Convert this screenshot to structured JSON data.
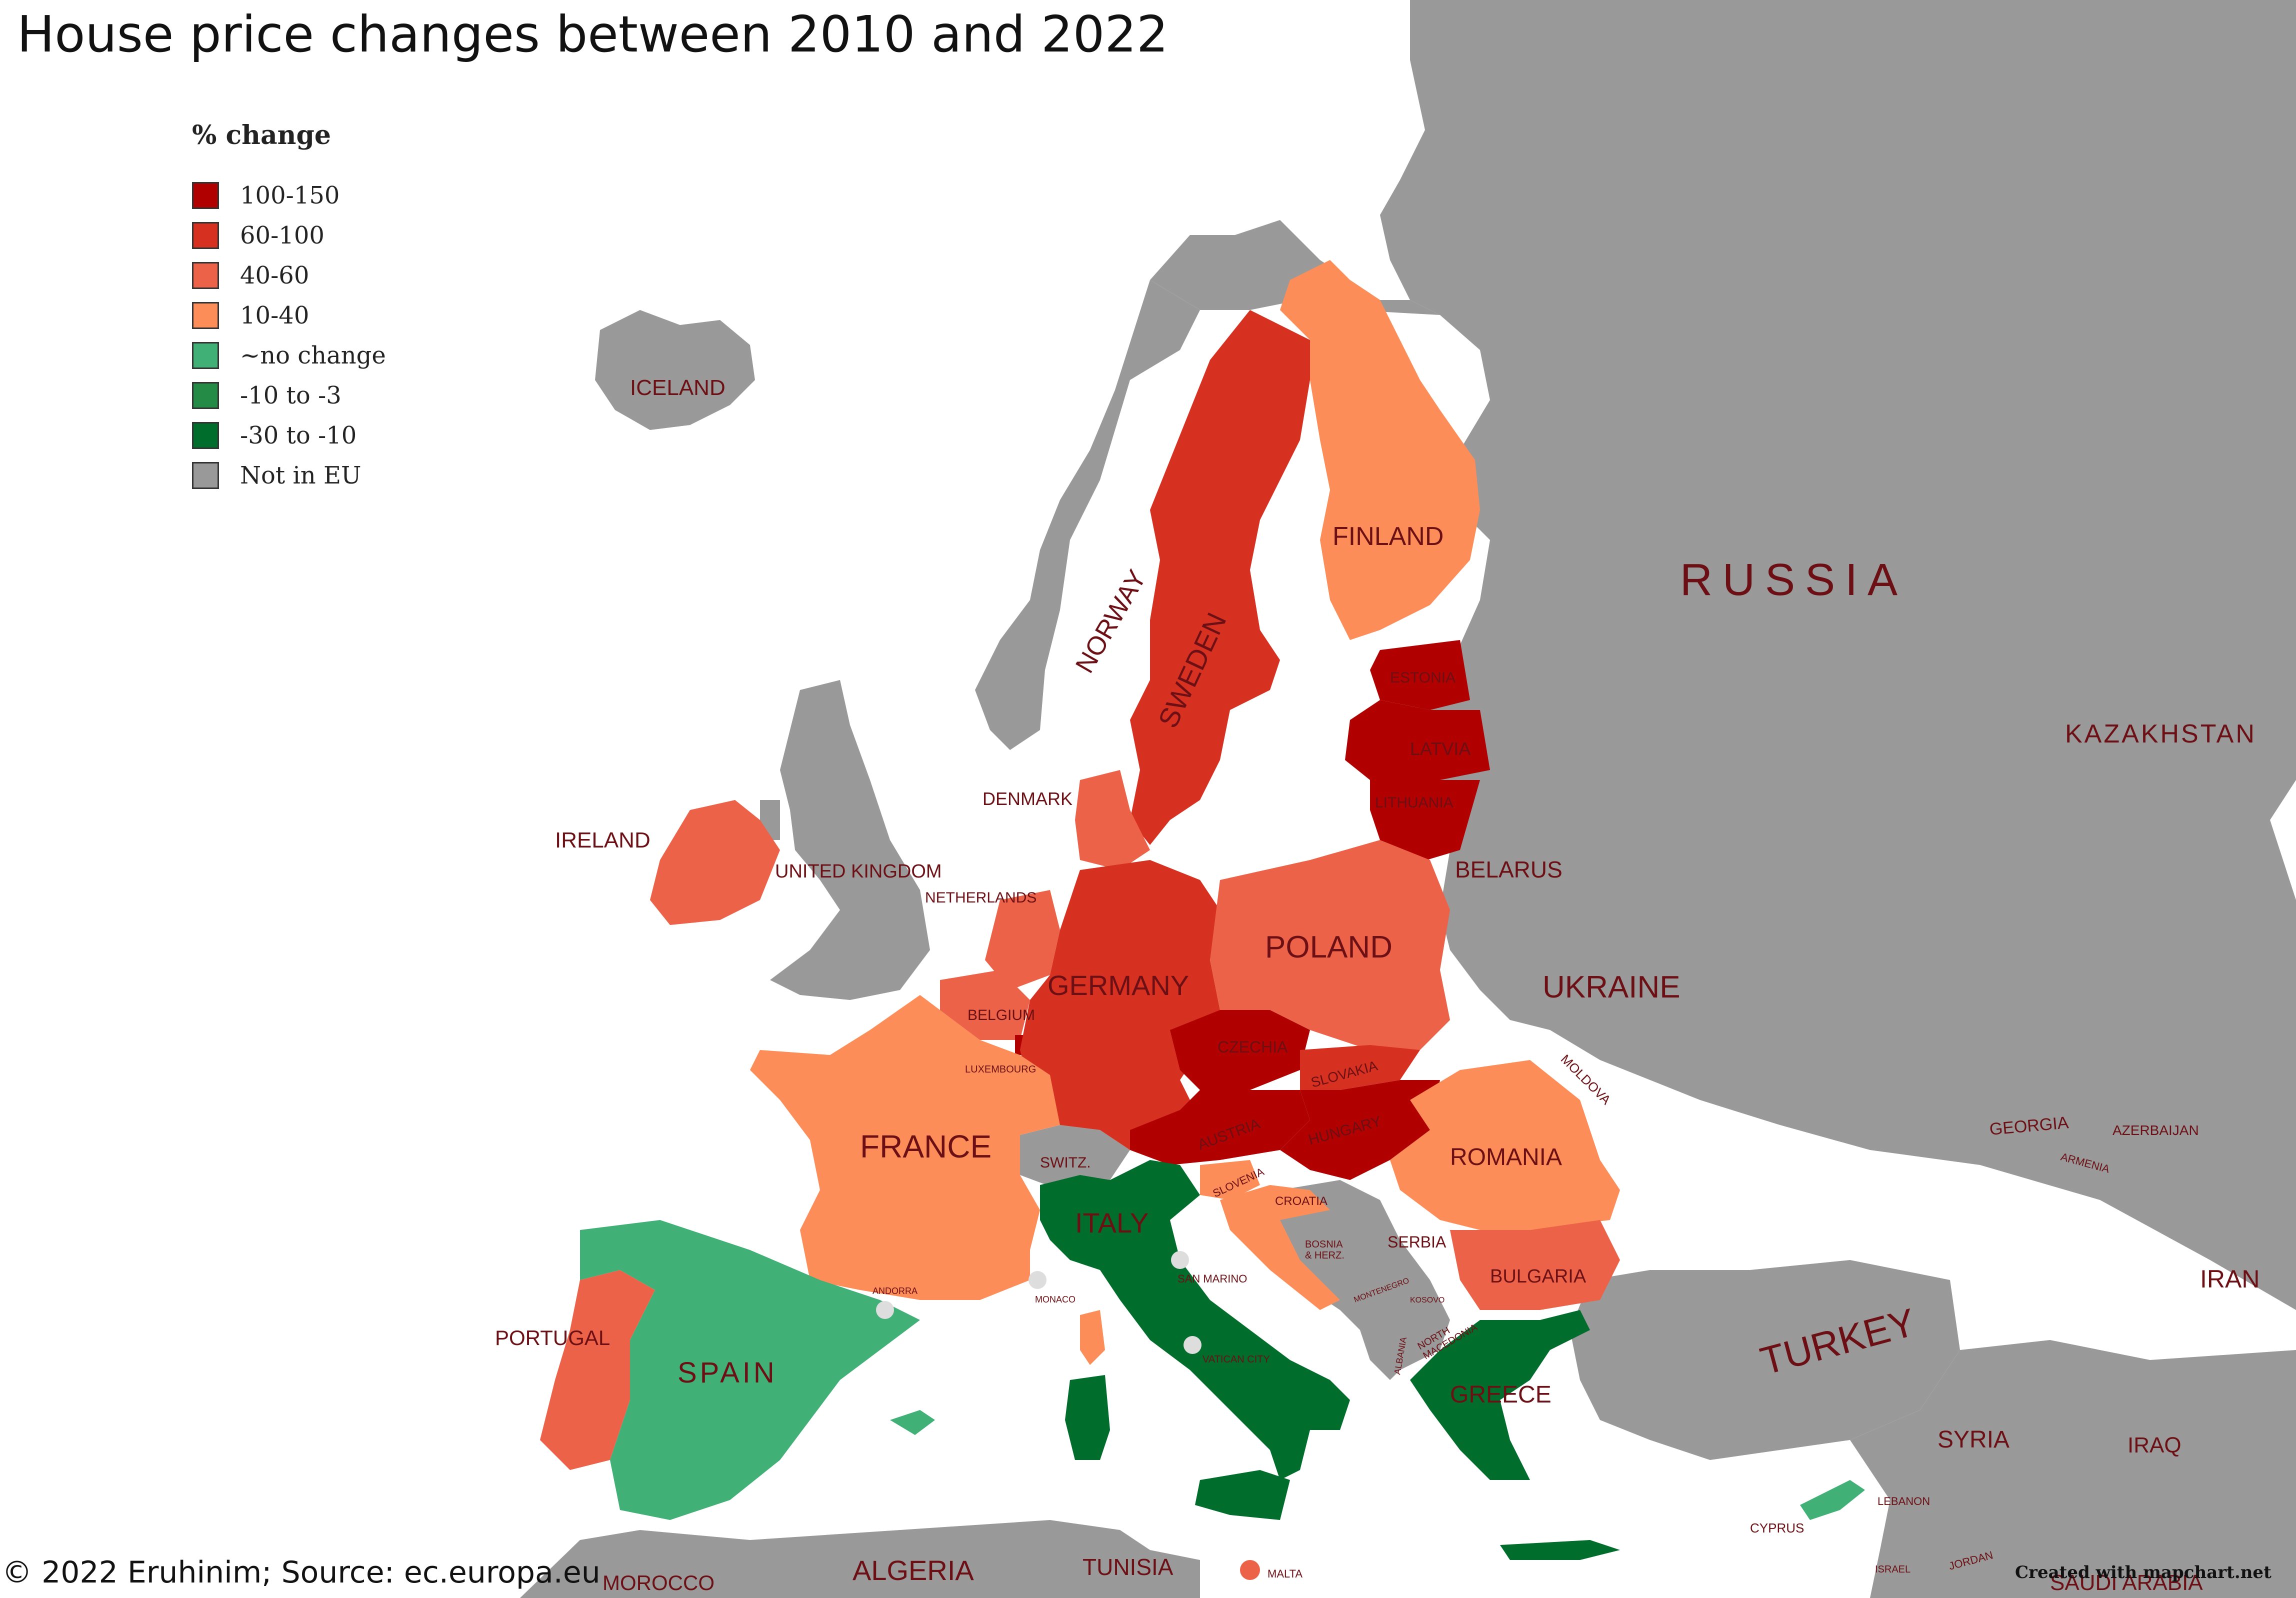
{
  "title": "House price changes between 2010 and 2022",
  "legend": {
    "title": "% change",
    "items": [
      {
        "label": "100-150",
        "color": "#b00000"
      },
      {
        "label": "60-100",
        "color": "#d63020"
      },
      {
        "label": "40-60",
        "color": "#ec6248"
      },
      {
        "label": "10-40",
        "color": "#fc8d58"
      },
      {
        "label": "~no change",
        "color": "#41b077"
      },
      {
        "label": "-10 to -3",
        "color": "#238b45"
      },
      {
        "label": "-30 to -10",
        "color": "#006d2c"
      },
      {
        "label": "Not in EU",
        "color": "#999999"
      }
    ]
  },
  "countries": {
    "iceland": "ICELAND",
    "ireland": "IRELAND",
    "uk": "UNITED KINGDOM",
    "norway": "NORWAY",
    "sweden": "SWEDEN",
    "finland": "FINLAND",
    "russia": "RUSSIA",
    "estonia": "ESTONIA",
    "latvia": "LATVIA",
    "lithuania": "LITHUANIA",
    "belarus": "BELARUS",
    "denmark": "DENMARK",
    "netherlands": "NETHERLANDS",
    "germany": "GERMANY",
    "poland": "POLAND",
    "belgium": "BELGIUM",
    "luxembourg": "LUXEMBOURG",
    "czechia": "CZECHIA",
    "slovakia": "SLOVAKIA",
    "ukraine": "UKRAINE",
    "moldova": "MOLDOVA",
    "austria": "AUSTRIA",
    "hungary": "HUNGARY",
    "france": "FRANCE",
    "switzerland": "SWITZ.",
    "slovenia": "SLOVENIA",
    "croatia": "CROATIA",
    "romania": "ROMANIA",
    "italy": "ITALY",
    "bosnia": "BOSNIA\n& HERZ.",
    "serbia": "SERBIA",
    "bulgaria": "BULGARIA",
    "montenegro": "MONTENEGRO",
    "kosovo": "KOSOVO",
    "north_macedonia": "NORTH\nMACEDONIA",
    "albania": "ALBANIA",
    "greece": "GREECE",
    "portugal": "PORTUGAL",
    "spain": "SPAIN",
    "andorra": "ANDORRA",
    "monaco": "MONACO",
    "san_marino": "SAN MARINO",
    "vatican": "VATICAN CITY",
    "malta": "MALTA",
    "kazakhstan": "KAZAKHSTAN",
    "georgia": "GEORGIA",
    "azerbaijan": "AZERBAIJAN",
    "armenia": "ARMENIA",
    "turkey": "TURKEY",
    "iran": "IRAN",
    "syria": "SYRIA",
    "iraq": "IRAQ",
    "lebanon": "LEBANON",
    "cyprus": "CYPRUS",
    "israel": "ISRAEL",
    "jordan": "JORDAN",
    "saudi_arabia": "SAUDI ARABIA",
    "morocco": "MOROCCO",
    "algeria": "ALGERIA",
    "tunisia": "TUNISIA"
  },
  "footer": "© 2022 Eruhinim; Source: ec.europa.eu",
  "credit": "Created with mapchart.net",
  "colors": {
    "sea": "#ffffff",
    "non_eu": "#999999",
    "label": "#6b0f14"
  }
}
